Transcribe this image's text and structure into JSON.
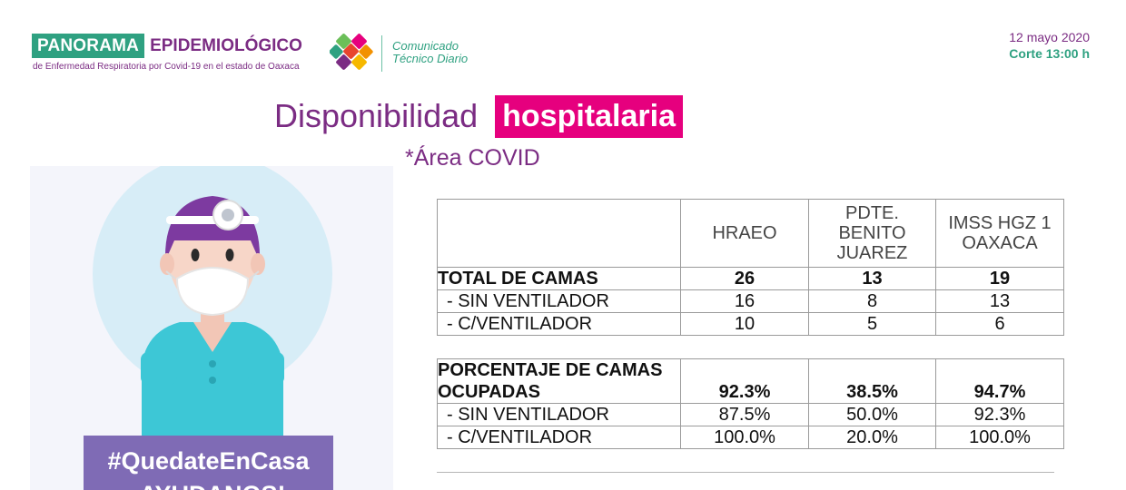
{
  "header": {
    "brand_panorama": "PANORAMA",
    "brand_epidemiologico": "EPIDEMIOLÓGICO",
    "brand_subtitle": "de Enfermedad Respiratoria por Covid-19 en el estado de Oaxaca",
    "communique_line1": "Comunicado",
    "communique_line2": "Técnico Diario",
    "date": "12 mayo 2020",
    "cutoff": "Corte 13:00 h",
    "colors": {
      "green": "#2fa181",
      "purple": "#7b2c83",
      "magenta": "#e6007e"
    }
  },
  "title": {
    "part1": "Disponibilidad",
    "part2": "hospitalaria",
    "subtitle": "*Área COVID"
  },
  "illustration": {
    "banner_line1": "#QuedateEnCasa",
    "banner_line2": "¡AYUDANOS!"
  },
  "beds_table": {
    "columns": [
      "HRAEO",
      "PDTE. BENITO JUAREZ",
      "IMSS HGZ 1 OAXACA"
    ],
    "column_lines": [
      [
        "HRAEO"
      ],
      [
        "PDTE.",
        "BENITO",
        "JUAREZ"
      ],
      [
        "IMSS HGZ 1",
        "OAXACA"
      ]
    ],
    "rows": [
      {
        "label": "TOTAL DE CAMAS",
        "values": [
          "26",
          "13",
          "19"
        ]
      },
      {
        "label": "- SIN VENTILADOR",
        "values": [
          "16",
          "8",
          "13"
        ]
      },
      {
        "label": "- C/VENTILADOR",
        "values": [
          "10",
          "5",
          "6"
        ]
      }
    ]
  },
  "occupancy_table": {
    "title_line1": "PORCENTAJE DE CAMAS",
    "title_line2": "OCUPADAS",
    "totals": [
      "92.3%",
      "38.5%",
      "94.7%"
    ],
    "rows": [
      {
        "label": "- SIN VENTILADOR",
        "values": [
          "87.5%",
          "50.0%",
          "92.3%"
        ]
      },
      {
        "label": "- C/VENTILADOR",
        "values": [
          "100.0%",
          "20.0%",
          "100.0%"
        ]
      }
    ]
  }
}
